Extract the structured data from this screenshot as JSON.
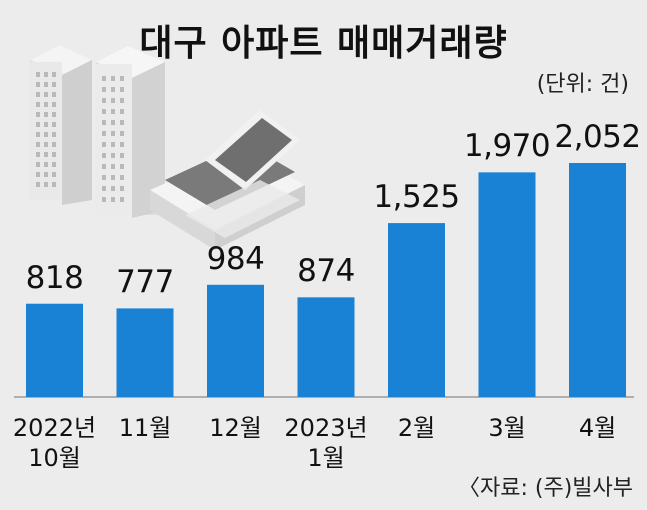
{
  "chart_data": {
    "type": "bar",
    "title": "대구 아파트 매매거래량",
    "unit": "(단위: 건)",
    "source": "〈자료: (주)빌사부",
    "categories": [
      "2022년\n10월",
      "11월",
      "12월",
      "2023년\n1월",
      "2월",
      "3월",
      "4월"
    ],
    "values": [
      818,
      777,
      984,
      874,
      1525,
      1970,
      2052
    ],
    "value_labels": [
      "818",
      "777",
      "984",
      "874",
      "1,525",
      "1,970",
      "2,052"
    ],
    "bar_color": "#1a82d4",
    "ylim": [
      0,
      2052
    ],
    "grid": false,
    "legend": "none"
  }
}
